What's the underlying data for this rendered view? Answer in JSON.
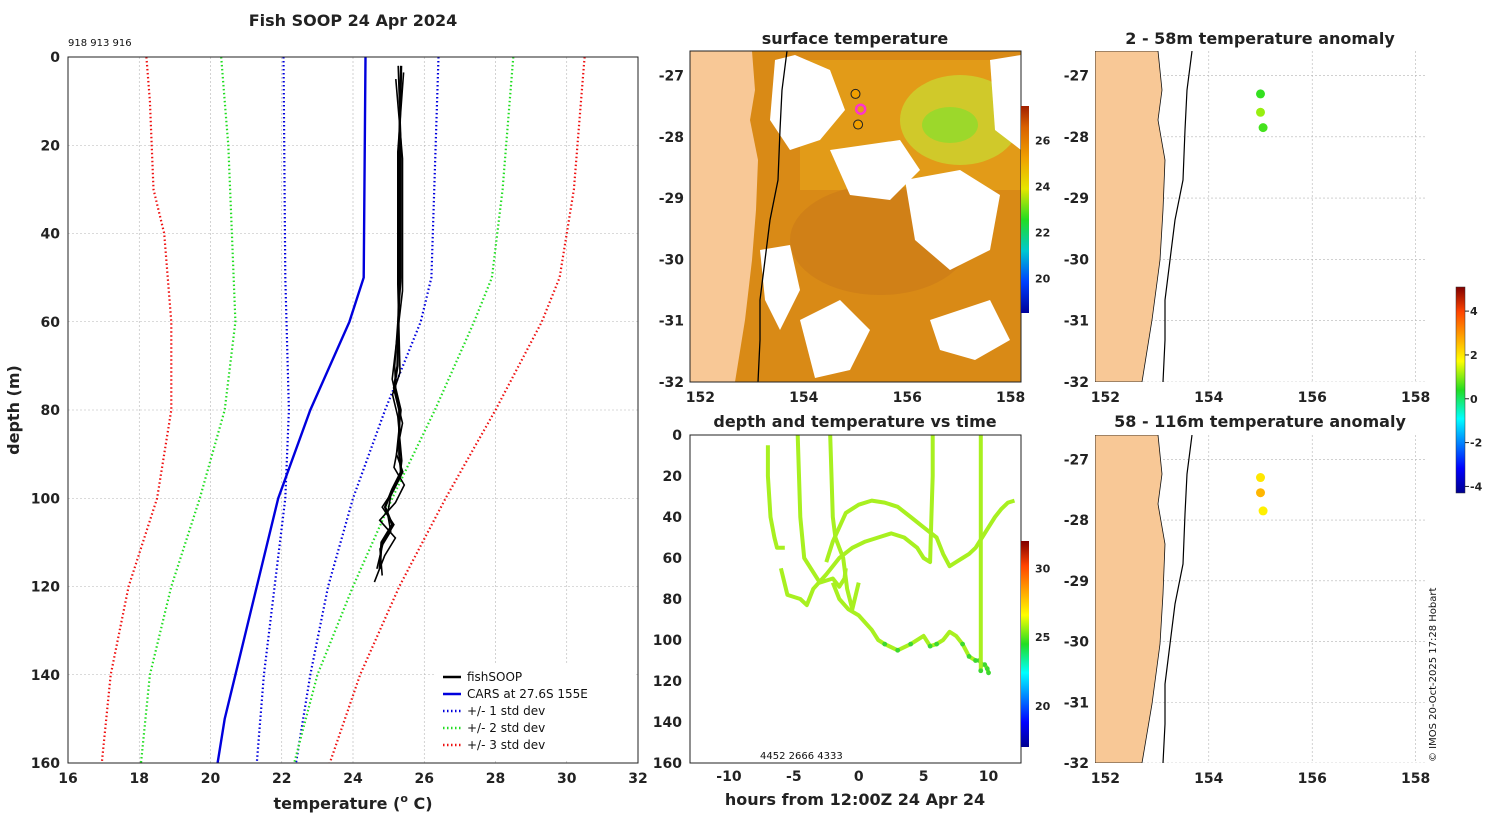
{
  "chart_data": [
    {
      "type": "line",
      "title": "Fish SOOP 24 Apr 2024",
      "annotation": "918 913 916",
      "xlabel": "temperature (°C)",
      "xlabel_main": "temperature (",
      "xlabel_sup": "o",
      "xlabel_tail": " C)",
      "ylabel": "depth (m)",
      "xlim": [
        16,
        32
      ],
      "ylim": [
        0,
        160
      ],
      "y_reversed": true,
      "xticks": [
        "16",
        "18",
        "20",
        "22",
        "24",
        "26",
        "28",
        "30",
        "32"
      ],
      "yticks": [
        "0",
        "20",
        "40",
        "60",
        "80",
        "100",
        "120",
        "140",
        "160"
      ],
      "legend": [
        {
          "label": "fishSOOP",
          "color": "#000000",
          "style": "solid"
        },
        {
          "label": "CARS at 27.6S 155E",
          "color": "#0000dd",
          "style": "solid"
        },
        {
          "label": "+/- 1 std dev",
          "color": "#0000dd",
          "style": "dotted"
        },
        {
          "label": "+/- 2 std dev",
          "color": "#22dd22",
          "style": "dotted"
        },
        {
          "label": "+/- 3 std dev",
          "color": "#ee1111",
          "style": "dotted"
        }
      ],
      "series": [
        {
          "name": "CARS mean",
          "color": "#0000dd",
          "style": "solid",
          "depth": [
            0,
            50,
            60,
            80,
            100,
            120,
            140,
            150,
            160
          ],
          "temp": [
            24.35,
            24.3,
            23.9,
            22.8,
            21.9,
            21.3,
            20.7,
            20.4,
            20.2
          ]
        },
        {
          "name": "-1 std",
          "color": "#0000dd",
          "style": "dotted",
          "depth": [
            0,
            50,
            80,
            100,
            120,
            140,
            160
          ],
          "temp": [
            22.05,
            22.1,
            22.2,
            22.1,
            21.8,
            21.5,
            21.3
          ]
        },
        {
          "name": "+1 std",
          "color": "#0000dd",
          "style": "dotted",
          "depth": [
            0,
            50,
            60,
            80,
            100,
            120,
            140,
            160
          ],
          "temp": [
            26.4,
            26.2,
            25.9,
            24.9,
            24.0,
            23.3,
            22.8,
            22.4
          ]
        },
        {
          "name": "-2 std",
          "color": "#22dd22",
          "style": "dotted",
          "depth": [
            0,
            10,
            20,
            40,
            60,
            80,
            100,
            120,
            140,
            160
          ],
          "temp": [
            20.3,
            20.4,
            20.5,
            20.6,
            20.7,
            20.4,
            19.7,
            18.9,
            18.3,
            18.05
          ]
        },
        {
          "name": "+2 std",
          "color": "#22dd22",
          "style": "dotted",
          "depth": [
            0,
            10,
            30,
            50,
            60,
            80,
            100,
            120,
            140,
            160
          ],
          "temp": [
            28.5,
            28.4,
            28.2,
            27.9,
            27.4,
            26.3,
            25.1,
            24.0,
            23.0,
            22.35
          ]
        },
        {
          "name": "-3 std",
          "color": "#ee1111",
          "style": "dotted",
          "depth": [
            0,
            10,
            30,
            40,
            60,
            80,
            100,
            120,
            140,
            160
          ],
          "temp": [
            18.2,
            18.3,
            18.4,
            18.7,
            18.9,
            18.9,
            18.5,
            17.7,
            17.2,
            16.95
          ]
        },
        {
          "name": "+3 std",
          "color": "#ee1111",
          "style": "dotted",
          "depth": [
            0,
            10,
            30,
            50,
            60,
            80,
            100,
            120,
            140,
            160
          ],
          "temp": [
            30.5,
            30.4,
            30.2,
            29.8,
            29.3,
            28.0,
            26.6,
            25.3,
            24.2,
            23.35
          ]
        },
        {
          "name": "fishSOOP",
          "color": "#000000",
          "style": "solid",
          "depth": [
            2,
            20,
            50,
            70,
            75,
            80,
            90,
            94,
            98,
            102,
            106,
            110,
            116
          ],
          "temp": [
            25.35,
            25.3,
            25.3,
            25.25,
            25.15,
            25.3,
            25.3,
            25.35,
            25.1,
            24.9,
            25.1,
            24.8,
            24.75
          ]
        }
      ]
    },
    {
      "type": "heatmap",
      "title": "surface temperature",
      "xlim": [
        151.8,
        158.2
      ],
      "ylim": [
        -32,
        -26.6
      ],
      "xticks": [
        "152",
        "154",
        "156",
        "158"
      ],
      "yticks": [
        "-27",
        "-28",
        "-29",
        "-30",
        "-31",
        "-32"
      ],
      "colorbar": {
        "min": 18.5,
        "max": 27.5,
        "ticks": [
          "20",
          "22",
          "24",
          "26"
        ]
      },
      "stations": [
        {
          "lon": 155.0,
          "lat": -27.3,
          "color": "#f2a000"
        },
        {
          "lon": 155.1,
          "lat": -27.55,
          "color": "#ff33cc"
        },
        {
          "lon": 155.05,
          "lat": -27.8,
          "color": "#f2a000"
        }
      ]
    },
    {
      "type": "scatter",
      "title": "depth and temperature vs time",
      "xlabel": "hours from 12:00Z 24 Apr 24",
      "xlim": [
        -13,
        12.5
      ],
      "ylim": [
        0,
        160
      ],
      "y_reversed": true,
      "xticks": [
        "-10",
        "-5",
        "0",
        "5",
        "10"
      ],
      "yticks": [
        "0",
        "20",
        "40",
        "60",
        "80",
        "100",
        "120",
        "140",
        "160"
      ],
      "annotation": "4452 2666 4333",
      "colorbar": {
        "min": 17,
        "max": 32,
        "ticks": [
          "20",
          "25",
          "30"
        ]
      },
      "tracks": [
        {
          "hours": [
            -7,
            -7,
            -6.8,
            -6.5,
            -6.3,
            -6,
            -5.7
          ],
          "depth": [
            5,
            20,
            40,
            50,
            55,
            55,
            55
          ]
        },
        {
          "hours": [
            -4.7,
            -4.6,
            -4.5,
            -4.2,
            -3,
            -2,
            -1.5,
            -1.1,
            -1
          ],
          "depth": [
            0,
            20,
            40,
            60,
            72,
            70,
            74,
            70,
            65
          ]
        },
        {
          "hours": [
            -2.2,
            -2.1,
            -2,
            -1.8,
            -1.5,
            -1.2,
            -0.9,
            -0.5,
            0
          ],
          "depth": [
            0,
            20,
            40,
            50,
            55,
            60,
            75,
            85,
            72
          ]
        },
        {
          "hours": [
            -6,
            -5.5,
            -4.5,
            -4,
            -3.5,
            -2.5,
            -1.5,
            -0.5,
            0.5,
            1.5,
            2.5,
            3.5,
            4.5,
            5,
            5.5,
            5.6,
            5.7,
            5.7
          ],
          "depth": [
            65,
            78,
            80,
            83,
            75,
            68,
            60,
            55,
            52,
            50,
            48,
            50,
            55,
            60,
            62,
            40,
            20,
            0
          ]
        },
        {
          "hours": [
            -2,
            -1.5,
            -0.8,
            0,
            1,
            1.5,
            2,
            3,
            4,
            5,
            5.5,
            6,
            6.5,
            7,
            7.5,
            8,
            8.5,
            9,
            9.3,
            9.5,
            9.7,
            9.9,
            10
          ],
          "depth": [
            72,
            80,
            85,
            88,
            95,
            100,
            102,
            105,
            102,
            98,
            103,
            102,
            100,
            96,
            98,
            102,
            108,
            110,
            110,
            112,
            112,
            114,
            116
          ]
        },
        {
          "hours": [
            -2.5,
            -2,
            -1.5,
            -1,
            0,
            1,
            2,
            3,
            4,
            5,
            6,
            6.5,
            7,
            7.5,
            8,
            8.5,
            9,
            9.5,
            10,
            10.5,
            11,
            11.5,
            12
          ],
          "depth": [
            62,
            52,
            45,
            38,
            34,
            32,
            33,
            35,
            40,
            45,
            50,
            58,
            64,
            62,
            60,
            58,
            55,
            50,
            45,
            40,
            36,
            33,
            32
          ]
        },
        {
          "hours": [
            9.4,
            9.4,
            9.4,
            9.4
          ],
          "depth": [
            0,
            40,
            80,
            115
          ]
        }
      ]
    },
    {
      "type": "scatter",
      "title": "2 - 58m temperature anomaly",
      "xlim": [
        151.8,
        158.2
      ],
      "ylim": [
        -32,
        -26.6
      ],
      "xticks": [
        "152",
        "154",
        "156",
        "158"
      ],
      "yticks": [
        "-27",
        "-28",
        "-29",
        "-30",
        "-31",
        "-32"
      ],
      "points": [
        {
          "lon": 155.0,
          "lat": -27.3,
          "anomaly": 0.5
        },
        {
          "lon": 155.0,
          "lat": -27.6,
          "anomaly": 1.1
        },
        {
          "lon": 155.05,
          "lat": -27.85,
          "anomaly": 0.6
        }
      ]
    },
    {
      "type": "scatter",
      "title": "58 - 116m temperature anomaly",
      "xlim": [
        151.8,
        158.2
      ],
      "ylim": [
        -32,
        -26.6
      ],
      "xticks": [
        "152",
        "154",
        "156",
        "158"
      ],
      "yticks": [
        "-27",
        "-28",
        "-29",
        "-30",
        "-31",
        "-32"
      ],
      "points": [
        {
          "lon": 155.0,
          "lat": -27.3,
          "anomaly": 2.0
        },
        {
          "lon": 155.0,
          "lat": -27.55,
          "anomaly": 2.6
        },
        {
          "lon": 155.05,
          "lat": -27.85,
          "anomaly": 1.9
        }
      ],
      "colorbar": {
        "min": -4.3,
        "max": 5.1,
        "ticks": [
          "4",
          "2",
          "0",
          "-2",
          "-4"
        ]
      }
    }
  ],
  "footer": "© IMOS 20-Oct-2025 17:28 Hobart"
}
